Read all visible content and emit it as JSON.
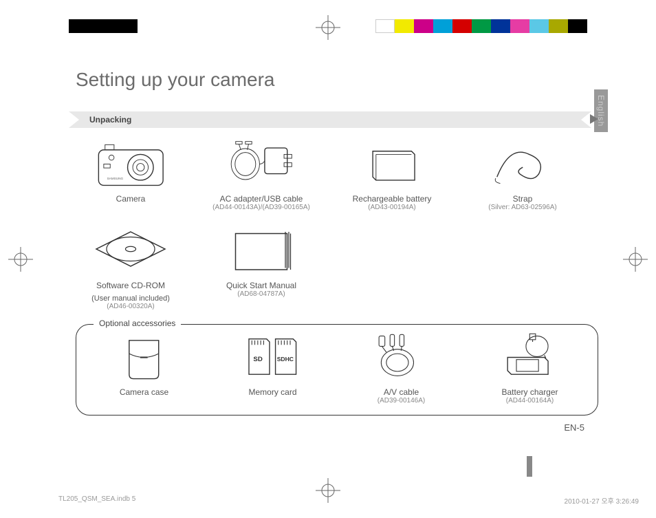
{
  "colorbar": {
    "left_block_color": "#000000",
    "swatches": [
      "#ffffff",
      "#f2ea00",
      "#cc0088",
      "#00a0d8",
      "#d40000",
      "#009944",
      "#003399",
      "#e63ca4",
      "#5bc8e6",
      "#a8a800",
      "#000000"
    ]
  },
  "title": "Setting up your camera",
  "section_label": "Unpacking",
  "banner_bg": "#e8e8e8",
  "banner_arrow_fill": "#777777",
  "lang_tab": "English",
  "row1": [
    {
      "label": "Camera",
      "sub": ""
    },
    {
      "label": "AC adapter/USB cable",
      "sub": "(AD44-00143A)/(AD39-00165A)"
    },
    {
      "label": "Rechargeable battery",
      "sub": "(AD43-00194A)"
    },
    {
      "label": "Strap",
      "sub": "(Silver: AD63-02596A)"
    }
  ],
  "row2": [
    {
      "label": "Software CD-ROM",
      "sub1": "(User manual included)",
      "sub2": "(AD46-00320A)"
    },
    {
      "label": "Quick Start Manual",
      "sub": "(AD68-04787A)"
    }
  ],
  "optional_title": "Optional accessories",
  "optional": [
    {
      "label": "Camera case",
      "sub": ""
    },
    {
      "label": "Memory card",
      "sub": ""
    },
    {
      "label": "A/V cable",
      "sub": "(AD39-00146A)"
    },
    {
      "label": "Battery charger",
      "sub": "(AD44-00164A)"
    }
  ],
  "sd_labels": {
    "sd": "SD",
    "sdhc": "SDHC"
  },
  "page_number": "EN-5",
  "footer_file": "TL205_QSM_SEA.indb   5",
  "footer_time": "2010-01-27   오후 3:26:49"
}
